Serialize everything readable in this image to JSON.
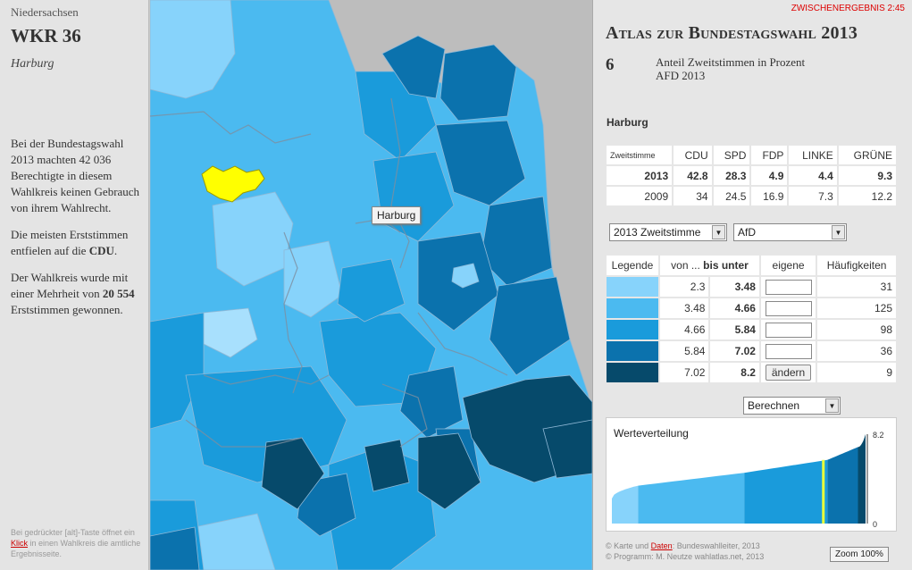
{
  "left": {
    "state": "Niedersachsen",
    "wkr": "WKR 36",
    "name": "Harburg",
    "p1": "Bei der Bundestagswahl 2013 machten 42 036 Berechtigte in diesem Wahlkreis keinen Gebrauch von ihrem Wahlrecht.",
    "p2_pre": "Die meisten Erststimmen entfielen auf die ",
    "p2_party": "CDU",
    "p2_post": ".",
    "p3_pre": "Der Wahlkreis wurde mit einer Mehrheit von ",
    "p3_num": "20 554",
    "p3_post": " Erststimmen gewonnen.",
    "footer_pre": "Bei gedrückter [alt]-Taste öffnet ein ",
    "footer_link": "Klick",
    "footer_post": " in einen Wahlkreis die amtliche Ergebnisseite."
  },
  "map": {
    "tooltip": "Harburg",
    "colors": [
      "#87d3fb",
      "#4bbaf0",
      "#1a9bdb",
      "#0b72ad",
      "#064a6b"
    ],
    "highlight_color": "#ffff00"
  },
  "right": {
    "interim": "ZWISCHENERGEBNIS 2:45",
    "title": "Atlas zur Bundestagswahl 2013",
    "number": "6",
    "subtitle_1": "Anteil Zweitstimmen in Prozent",
    "subtitle_2": "AFD 2013",
    "region": "Harburg",
    "results": {
      "corner": "Zweitstimme",
      "parties": [
        "CDU",
        "SPD",
        "FDP",
        "LINKE",
        "GRÜNE"
      ],
      "rows": [
        {
          "year": "2013",
          "values": [
            "42.8",
            "28.3",
            "4.9",
            "4.4",
            "9.3"
          ]
        },
        {
          "year": "2009",
          "values": [
            "34",
            "24.5",
            "16.9",
            "7.3",
            "12.2"
          ]
        }
      ]
    },
    "select_vote": "2013 Zweitstimme",
    "select_party": "AfD",
    "legend": {
      "headers": [
        "Legende",
        "von ... ",
        "bis unter",
        "eigene",
        "Häufigkeiten"
      ],
      "rows": [
        {
          "from": "2.3",
          "to": "3.48",
          "count": "31"
        },
        {
          "from": "3.48",
          "to": "4.66",
          "count": "125"
        },
        {
          "from": "4.66",
          "to": "5.84",
          "count": "98"
        },
        {
          "from": "5.84",
          "to": "7.02",
          "count": "36"
        },
        {
          "from": "7.02",
          "to": "8.2",
          "count": "9"
        }
      ],
      "change_button": "ändern"
    },
    "select_calc": "Berechnen",
    "chart": {
      "title": "Werteverteilung",
      "max_label": "8.2",
      "min_label": "0"
    },
    "credit_1_pre": "© Karte und ",
    "credit_1_link": "Daten",
    "credit_1_post": ": Bundeswahlleiter, 2013",
    "credit_2": "© Programm: M. Neutze wahlatlas.net, 2013",
    "zoom_button": "Zoom 100%"
  },
  "chart_data": {
    "type": "area",
    "title": "Werteverteilung",
    "ylim": [
      0,
      8.2
    ],
    "x_count": 299,
    "class_breaks": [
      2.3,
      3.48,
      4.66,
      5.84,
      7.02,
      8.2
    ],
    "class_counts": [
      31,
      125,
      98,
      36,
      9
    ],
    "highlight_value": 5.84
  }
}
